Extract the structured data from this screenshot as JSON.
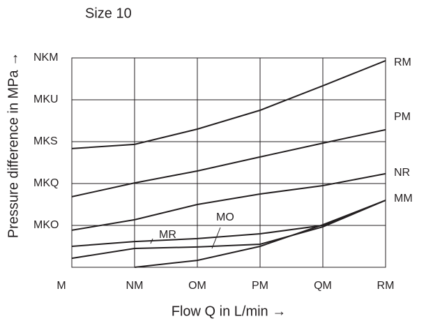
{
  "chart_data": {
    "type": "line",
    "title": "Size 10",
    "xlabel": "Flow Q  in L/min →",
    "ylabel": "Pressure difference in MPa →",
    "x": [
      0,
      10,
      20,
      30,
      40,
      50
    ],
    "xlim": [
      0,
      50
    ],
    "xticks": [
      {
        "value": 0,
        "label": "M"
      },
      {
        "value": 10,
        "label": "NM"
      },
      {
        "value": 20,
        "label": "OM"
      },
      {
        "value": 30,
        "label": "PM"
      },
      {
        "value": 40,
        "label": "QM"
      },
      {
        "value": 50,
        "label": "RM"
      }
    ],
    "ylim": [
      0,
      1.0
    ],
    "yticks": [
      {
        "value": 0.2,
        "label": "MKO"
      },
      {
        "value": 0.4,
        "label": "MKQ"
      },
      {
        "value": 0.6,
        "label": "MKS"
      },
      {
        "value": 0.8,
        "label": "MKU"
      },
      {
        "value": 1.0,
        "label": "NKM"
      }
    ],
    "grid": true,
    "series": [
      {
        "name": "RM",
        "color": "#231f20",
        "values": [
          0.567,
          0.587,
          0.66,
          0.75,
          0.867,
          0.987
        ]
      },
      {
        "name": "PM",
        "color": "#231f20",
        "values": [
          0.337,
          0.403,
          0.46,
          0.527,
          0.593,
          0.657
        ]
      },
      {
        "name": "NR",
        "color": "#231f20",
        "values": [
          0.177,
          0.227,
          0.3,
          0.35,
          0.39,
          0.447
        ]
      },
      {
        "name": "MM",
        "color": "#231f20",
        "values": [
          null,
          0,
          0.033,
          0.1,
          0.203,
          0.32
        ]
      },
      {
        "name": "MO",
        "color": "#231f20",
        "values": [
          0.043,
          0.09,
          0.097,
          0.11,
          0.193,
          0.32
        ]
      },
      {
        "name": "MR",
        "color": "#231f20",
        "values": [
          0.1,
          0.123,
          0.137,
          0.16,
          0.2,
          0.32
        ]
      }
    ]
  }
}
